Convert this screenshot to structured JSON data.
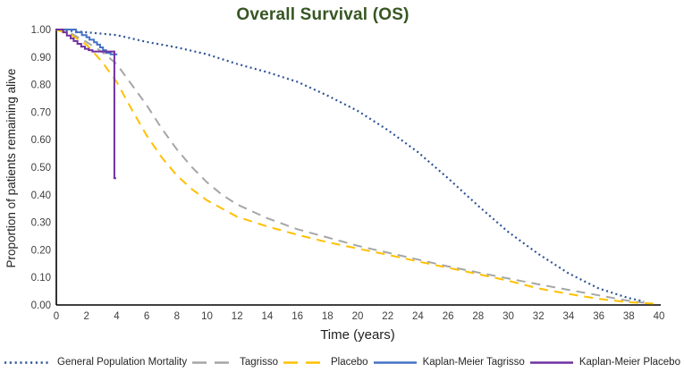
{
  "title": "Overall Survival (OS)",
  "theme": {
    "title_color": "#375623",
    "axis_line_color": "#000000",
    "tick_text_color": "#404040",
    "background": "#ffffff"
  },
  "axes": {
    "x_label": "Time (years)",
    "y_label": "Proportion of patients remaining alive",
    "x_ticks": [
      "0",
      "2",
      "4",
      "6",
      "8",
      "10",
      "12",
      "14",
      "16",
      "18",
      "20",
      "22",
      "24",
      "26",
      "28",
      "30",
      "32",
      "34",
      "36",
      "38",
      "40"
    ],
    "y_ticks": [
      "0.00",
      "0.10",
      "0.20",
      "0.30",
      "0.40",
      "0.50",
      "0.60",
      "0.70",
      "0.80",
      "0.90",
      "1.00"
    ]
  },
  "chart_data": {
    "type": "line",
    "title": "Overall Survival (OS)",
    "xlabel": "Time (years)",
    "ylabel": "Proportion of patients remaining alive",
    "xlim": [
      0,
      40
    ],
    "ylim": [
      0,
      1.0
    ],
    "grid": false,
    "legend_position": "bottom",
    "series": [
      {
        "name": "General Population Mortality",
        "color": "#2F5496",
        "line_style": "dotted",
        "step": false,
        "x": [
          0,
          2,
          4,
          6,
          8,
          10,
          12,
          14,
          16,
          18,
          20,
          22,
          24,
          26,
          28,
          30,
          32,
          34,
          36,
          38,
          39
        ],
        "y": [
          1.0,
          0.99,
          0.98,
          0.955,
          0.935,
          0.91,
          0.875,
          0.845,
          0.81,
          0.76,
          0.705,
          0.635,
          0.555,
          0.46,
          0.36,
          0.265,
          0.185,
          0.115,
          0.06,
          0.025,
          0.013
        ]
      },
      {
        "name": "Tagrisso",
        "color": "#A6A6A6",
        "line_style": "dashed",
        "step": false,
        "x": [
          0,
          1,
          2,
          3,
          4,
          5,
          6,
          7,
          8,
          9,
          10,
          11,
          12,
          14,
          16,
          18,
          20,
          22,
          24,
          26,
          28,
          30,
          32,
          34,
          36,
          38,
          39
        ],
        "y": [
          1.0,
          0.985,
          0.955,
          0.92,
          0.875,
          0.8,
          0.725,
          0.64,
          0.565,
          0.5,
          0.445,
          0.4,
          0.365,
          0.315,
          0.275,
          0.245,
          0.215,
          0.19,
          0.165,
          0.14,
          0.118,
          0.096,
          0.075,
          0.055,
          0.035,
          0.015,
          0.008
        ]
      },
      {
        "name": "Placebo",
        "color": "#FFC000",
        "line_style": "dashed",
        "step": false,
        "x": [
          0,
          1,
          2,
          3,
          4,
          5,
          6,
          7,
          8,
          9,
          10,
          11,
          12,
          14,
          16,
          18,
          20,
          22,
          24,
          26,
          28,
          30,
          32,
          34,
          36,
          38,
          40
        ],
        "y": [
          1.0,
          0.98,
          0.945,
          0.885,
          0.81,
          0.71,
          0.615,
          0.535,
          0.47,
          0.42,
          0.38,
          0.35,
          0.32,
          0.285,
          0.255,
          0.228,
          0.205,
          0.182,
          0.158,
          0.135,
          0.112,
          0.088,
          0.06,
          0.04,
          0.022,
          0.01,
          0.004
        ]
      },
      {
        "name": "Kaplan-Meier Tagrisso",
        "color": "#4472C4",
        "line_style": "solid",
        "step": true,
        "x": [
          0,
          1.3,
          1.7,
          2.0,
          2.2,
          2.5,
          2.7,
          2.9,
          3.1,
          3.3,
          3.6,
          4.05
        ],
        "y": [
          1.0,
          0.99,
          0.98,
          0.972,
          0.963,
          0.954,
          0.945,
          0.935,
          0.925,
          0.915,
          0.91,
          0.91
        ]
      },
      {
        "name": "Kaplan-Meier Placebo",
        "color": "#7030A0",
        "line_style": "solid",
        "step": true,
        "x": [
          0,
          0.45,
          0.7,
          0.95,
          1.15,
          1.4,
          1.65,
          1.9,
          2.15,
          2.4,
          3.85,
          3.97
        ],
        "y": [
          1.0,
          0.99,
          0.978,
          0.968,
          0.958,
          0.948,
          0.938,
          0.93,
          0.925,
          0.92,
          0.46,
          0.46
        ]
      }
    ]
  }
}
